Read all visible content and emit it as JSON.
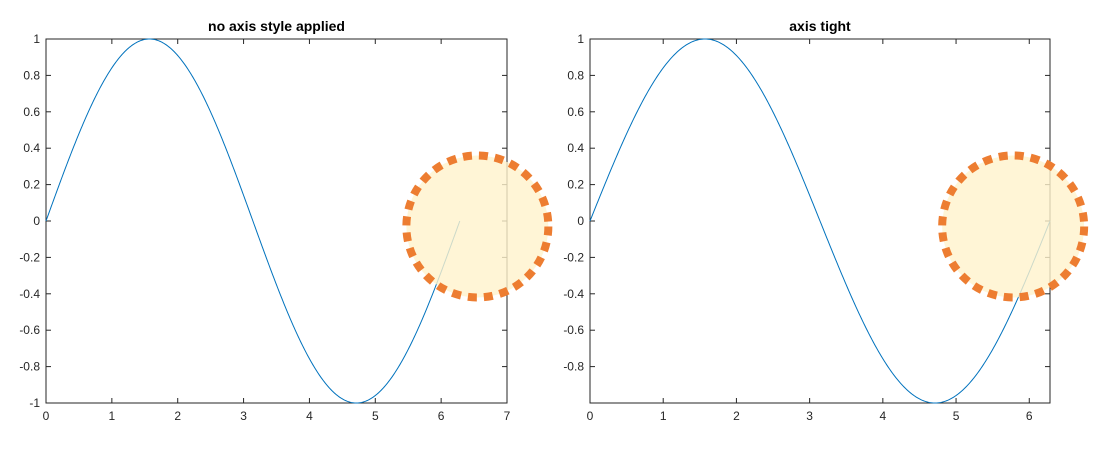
{
  "figure": {
    "background": "#ffffff"
  },
  "chart_data": [
    {
      "type": "line",
      "title": "no axis style applied",
      "xlim": [
        0,
        7
      ],
      "ylim": [
        -1,
        1
      ],
      "xticks": [
        0,
        1,
        2,
        3,
        4,
        5,
        6,
        7
      ],
      "xtick_labels": [
        "0",
        "1",
        "2",
        "3",
        "4",
        "5",
        "6",
        "7"
      ],
      "yticks": [
        -1,
        -0.8,
        -0.6,
        -0.4,
        -0.2,
        0,
        0.2,
        0.4,
        0.6,
        0.8,
        1
      ],
      "ytick_labels": [
        "-1",
        "-0.8",
        "-0.6",
        "-0.4",
        "-0.2",
        "0",
        "0.2",
        "0.4",
        "0.6",
        "0.8",
        "1"
      ],
      "series": [
        {
          "function": "sin",
          "x_range": [
            0,
            6.2832
          ],
          "color": "#0072BD"
        }
      ],
      "highlight": {
        "center": [
          6.55,
          -0.03
        ],
        "fill": "#FFF2CC",
        "stroke": "#ED7D31"
      },
      "grid": false,
      "box": true
    },
    {
      "type": "line",
      "title": "axis tight",
      "xlim": [
        0,
        6.2832
      ],
      "ylim": [
        -1,
        1
      ],
      "xticks": [
        0,
        1,
        2,
        3,
        4,
        5,
        6
      ],
      "xtick_labels": [
        "0",
        "1",
        "2",
        "3",
        "4",
        "5",
        "6"
      ],
      "yticks": [
        -0.8,
        -0.6,
        -0.4,
        -0.2,
        0,
        0.2,
        0.4,
        0.6,
        0.8,
        1
      ],
      "ytick_labels": [
        "-0.8",
        "-0.6",
        "-0.4",
        "-0.2",
        "0",
        "0.2",
        "0.4",
        "0.6",
        "0.8",
        "1"
      ],
      "series": [
        {
          "function": "sin",
          "x_range": [
            0,
            6.2832
          ],
          "color": "#0072BD"
        }
      ],
      "highlight": {
        "center": [
          5.78,
          -0.03
        ],
        "fill": "#FFF2CC",
        "stroke": "#ED7D31"
      },
      "grid": false,
      "box": true
    }
  ]
}
